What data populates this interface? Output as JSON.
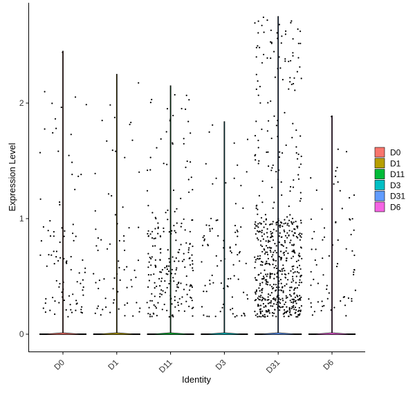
{
  "chart_data": {
    "type": "violin",
    "title": "",
    "xlabel": "Identity",
    "ylabel": "Expression Level",
    "ylim": [
      -0.15,
      2.85
    ],
    "yticks": [
      0,
      1,
      2
    ],
    "categories": [
      "D0",
      "D1",
      "D11",
      "D3",
      "D31",
      "D6"
    ],
    "max_values": [
      2.45,
      2.25,
      2.15,
      1.84,
      2.75,
      1.89
    ],
    "nonzero_cells": [
      95,
      70,
      230,
      90,
      620,
      75
    ],
    "legend": {
      "position": "right",
      "entries": [
        {
          "label": "D0",
          "color": "#F8766D"
        },
        {
          "label": "D1",
          "color": "#B79F00"
        },
        {
          "label": "D11",
          "color": "#00BA38"
        },
        {
          "label": "D3",
          "color": "#00BFC4"
        },
        {
          "label": "D31",
          "color": "#619CFF"
        },
        {
          "label": "D6",
          "color": "#F564E3"
        }
      ]
    },
    "grid": false
  }
}
